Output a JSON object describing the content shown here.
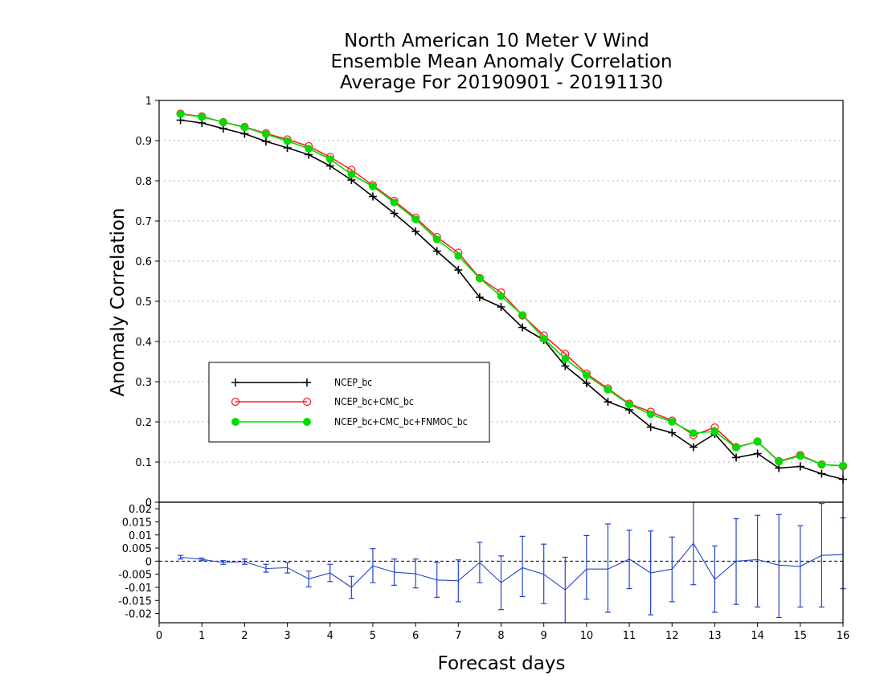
{
  "chart_data": [
    {
      "type": "line",
      "title": [
        "North American 10 Meter V Wind",
        "Ensemble Mean Anomaly Correlation",
        "Average For 20190901 - 20191130"
      ],
      "xlabel": "Forecast days",
      "ylabel": "Anomaly Correlation",
      "xlim": [
        0,
        16
      ],
      "ylim": [
        0,
        1
      ],
      "xticks": [
        0,
        1,
        2,
        3,
        4,
        5,
        6,
        7,
        8,
        9,
        10,
        11,
        12,
        13,
        14,
        15,
        16
      ],
      "yticks": [
        "0",
        "0.1",
        "0.2",
        "0.3",
        "0.4",
        "0.5",
        "0.6",
        "0.7",
        "0.8",
        "0.9",
        "1"
      ],
      "grid": "horizontal dotted",
      "legend_position": "lower-left",
      "x": [
        0.5,
        1,
        1.5,
        2,
        2.5,
        3,
        3.5,
        4,
        4.5,
        5,
        5.5,
        6,
        6.5,
        7,
        7.5,
        8,
        8.5,
        9,
        9.5,
        10,
        10.5,
        11,
        11.5,
        12,
        12.5,
        13,
        13.5,
        14,
        14.5,
        15,
        15.5,
        16
      ],
      "series": [
        {
          "name": "NCEP_bc",
          "color": "#000000",
          "marker": "plus",
          "values": [
            0.951,
            0.944,
            0.93,
            0.917,
            0.898,
            0.882,
            0.865,
            0.837,
            0.802,
            0.761,
            0.719,
            0.674,
            0.625,
            0.578,
            0.51,
            0.486,
            0.435,
            0.404,
            0.339,
            0.296,
            0.25,
            0.23,
            0.187,
            0.173,
            0.137,
            0.17,
            0.111,
            0.121,
            0.085,
            0.089,
            0.071,
            0.057
          ]
        },
        {
          "name": "NCEP_bc+CMC_bc",
          "color": "#ff2222",
          "marker": "open-circle",
          "values": [
            0.967,
            0.96,
            0.946,
            0.934,
            0.918,
            0.903,
            0.886,
            0.859,
            0.827,
            0.789,
            0.75,
            0.708,
            0.66,
            0.621,
            0.558,
            0.522,
            0.465,
            0.415,
            0.369,
            0.32,
            0.283,
            0.245,
            0.225,
            0.203,
            0.167,
            0.186,
            0.137,
            0.151,
            0.102,
            0.117,
            0.094,
            0.09
          ]
        },
        {
          "name": "NCEP_bc+CMC_bc+FNMOC_bc",
          "color": "#00dd00",
          "marker": "filled-circle",
          "values": [
            0.966,
            0.959,
            0.946,
            0.933,
            0.916,
            0.899,
            0.88,
            0.854,
            0.816,
            0.786,
            0.746,
            0.704,
            0.654,
            0.613,
            0.557,
            0.513,
            0.466,
            0.407,
            0.357,
            0.316,
            0.28,
            0.243,
            0.219,
            0.2,
            0.172,
            0.176,
            0.136,
            0.151,
            0.101,
            0.115,
            0.094,
            0.091
          ]
        }
      ]
    },
    {
      "type": "line",
      "subtype": "difference-with-error-bars",
      "xlim": [
        0,
        16
      ],
      "ylim": [
        -0.0235,
        0.0225
      ],
      "yticks": [
        "-0.02",
        "-0.015",
        "-0.01",
        "-0.005",
        "0",
        "0.005",
        "0.01",
        "0.015",
        "0.02"
      ],
      "zero_line": "dashed",
      "color": "#2244cc",
      "x": [
        0.5,
        1,
        1.5,
        2,
        2.5,
        3,
        3.5,
        4,
        4.5,
        5,
        5.5,
        6,
        6.5,
        7,
        7.5,
        8,
        8.5,
        9,
        9.5,
        10,
        10.5,
        11,
        11.5,
        12,
        12.5,
        13,
        13.5,
        14,
        14.5,
        15,
        15.5,
        16
      ],
      "values": [
        0.0015,
        0.0007,
        -0.0005,
        -0.0002,
        -0.0028,
        -0.0025,
        -0.0068,
        -0.0045,
        -0.01,
        -0.0018,
        -0.0042,
        -0.0048,
        -0.0072,
        -0.0075,
        -0.0005,
        -0.0082,
        -0.0025,
        -0.005,
        -0.011,
        -0.003,
        -0.003,
        0.0008,
        -0.0045,
        -0.003,
        0.0068,
        -0.007,
        0.0,
        0.0006,
        -0.0015,
        -0.002,
        0.0022,
        0.0025
      ],
      "error_low": [
        0.0008,
        0.0002,
        -0.0012,
        -0.0012,
        -0.0042,
        -0.0045,
        -0.0098,
        -0.0078,
        -0.0142,
        -0.0082,
        -0.0092,
        -0.0102,
        -0.0138,
        -0.0155,
        -0.0082,
        -0.0185,
        -0.0135,
        -0.0162,
        -0.024,
        -0.0145,
        -0.0195,
        -0.0105,
        -0.0205,
        -0.0155,
        -0.009,
        -0.0195,
        -0.0165,
        -0.0175,
        -0.0215,
        -0.0175,
        -0.0175,
        -0.0105
      ],
      "error_high": [
        0.0022,
        0.0012,
        0.0002,
        0.0008,
        -0.0012,
        -0.0005,
        -0.0038,
        -0.0012,
        -0.0058,
        0.0048,
        0.0008,
        0.0008,
        -0.0005,
        0.0005,
        0.0072,
        0.002,
        0.0095,
        0.0065,
        0.0015,
        0.0098,
        0.0142,
        0.0118,
        0.0115,
        0.0092,
        0.0235,
        0.0058,
        0.0162,
        0.0175,
        0.0178,
        0.0135,
        0.022,
        0.0165
      ]
    }
  ]
}
